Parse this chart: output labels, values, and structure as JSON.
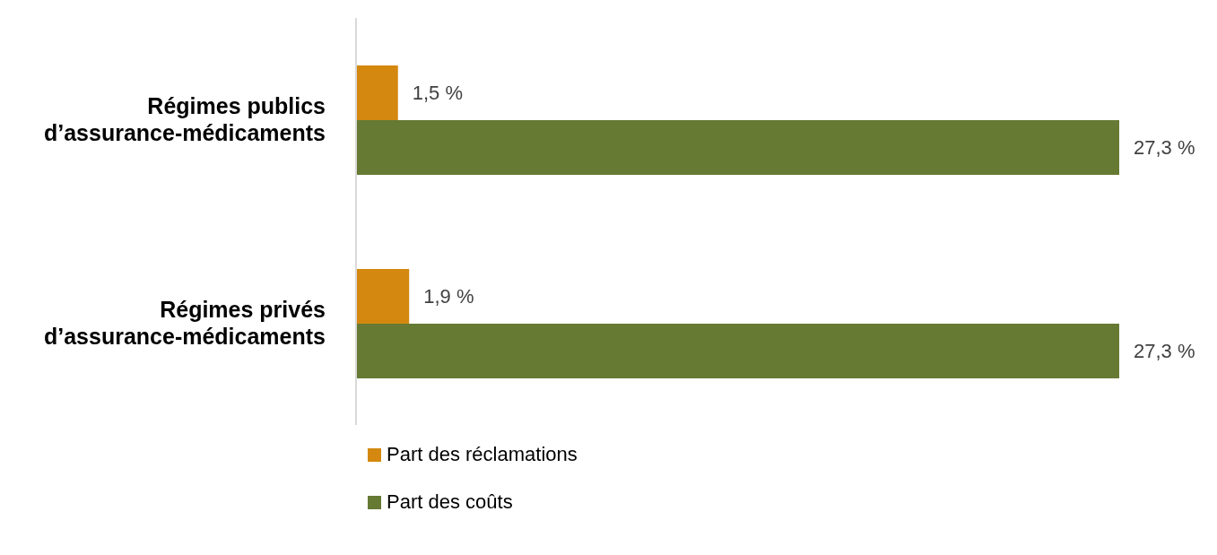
{
  "chart_data": {
    "type": "bar",
    "orientation": "horizontal",
    "categories": [
      "Régimes publics d’assurance-médicaments",
      "Régimes privés d’assurance-médicaments"
    ],
    "series": [
      {
        "name": "Part des réclamations",
        "color": "#d4880f",
        "values": [
          1.5,
          1.9
        ],
        "value_labels": [
          "1,5 %",
          "1,9 %"
        ]
      },
      {
        "name": "Part des coûts",
        "color": "#667a33",
        "values": [
          27.3,
          27.3
        ],
        "value_labels": [
          "27,3 %",
          "27,3 %"
        ]
      }
    ],
    "legend": "bottom",
    "grid": false
  }
}
